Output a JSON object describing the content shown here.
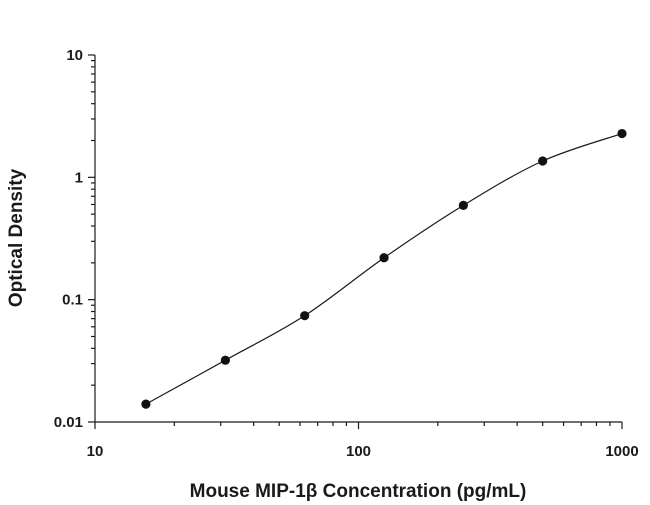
{
  "chart_data": {
    "type": "scatter",
    "title": "",
    "xlabel": "Mouse MIP-1β Concentration (pg/mL)",
    "ylabel": "Optical Density",
    "x_scale": "log",
    "y_scale": "log",
    "xlim": [
      10,
      1000
    ],
    "ylim": [
      0.01,
      10
    ],
    "x_ticks": [
      "10",
      "100",
      "1000"
    ],
    "y_ticks": [
      "0.01",
      "0.1",
      "1",
      "10"
    ],
    "grid": false,
    "legend": "none",
    "series": [
      {
        "x": [
          15.6,
          31.25,
          62.5,
          125,
          250,
          500,
          1000
        ],
        "y": [
          0.014,
          0.032,
          0.074,
          0.22,
          0.59,
          1.36,
          2.28
        ]
      }
    ],
    "fit_curve": true
  }
}
